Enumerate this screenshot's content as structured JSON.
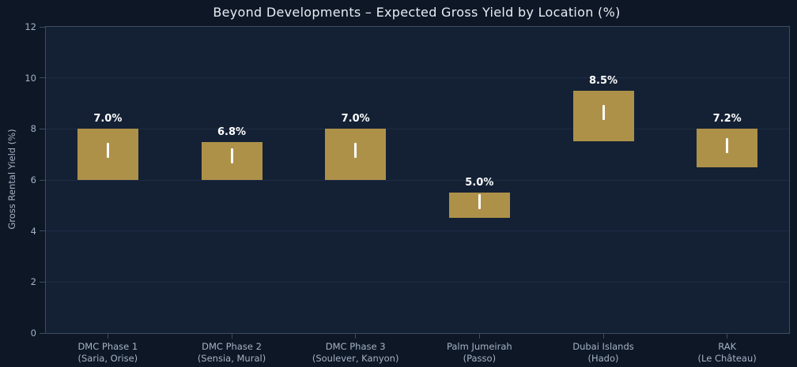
{
  "chart_data": {
    "type": "bar",
    "subtype": "floating_range_bars_with_median_marker",
    "title": "Beyond Developments – Expected Gross Yield by Location (%)",
    "xlabel": "",
    "ylabel": "Gross Rental Yield (%)",
    "ylim": [
      0,
      12
    ],
    "yticks": [
      0,
      2,
      4,
      6,
      8,
      10,
      12
    ],
    "grid": true,
    "legend": false,
    "categories": [
      [
        "DMC Phase 1",
        "(Saria, Orise)"
      ],
      [
        "DMC Phase 2",
        "(Sensia, Mural)"
      ],
      [
        "DMC Phase 3",
        "(Soulever, Kanyon)"
      ],
      [
        "Palm Jumeirah",
        "(Passo)"
      ],
      [
        "Dubai Islands",
        "(Hado)"
      ],
      [
        "RAK",
        "(Le Château)"
      ]
    ],
    "series": [
      {
        "name": "Expected Gross Yield Range",
        "bars": [
          {
            "low": 6.0,
            "high": 8.0,
            "value": 7.0,
            "label": "7.0%"
          },
          {
            "low": 6.0,
            "high": 7.5,
            "value": 6.8,
            "label": "6.8%"
          },
          {
            "low": 6.0,
            "high": 8.0,
            "value": 7.0,
            "label": "7.0%"
          },
          {
            "low": 4.5,
            "high": 5.5,
            "value": 5.0,
            "label": "5.0%"
          },
          {
            "low": 7.5,
            "high": 9.5,
            "value": 8.5,
            "label": "8.5%"
          },
          {
            "low": 6.5,
            "high": 8.0,
            "value": 7.2,
            "label": "7.2%"
          }
        ]
      }
    ],
    "colors": {
      "figure_background": "#0d1725",
      "plot_background": "#142134",
      "bar_fill": "#ae9149",
      "median_marker": "#ffffff",
      "gridline": "#1e2c45",
      "spine": "#3c4c63",
      "tick_text": "#a6b2c5",
      "title_text": "#e8edf5",
      "bar_label_text": "#ffffff"
    }
  }
}
